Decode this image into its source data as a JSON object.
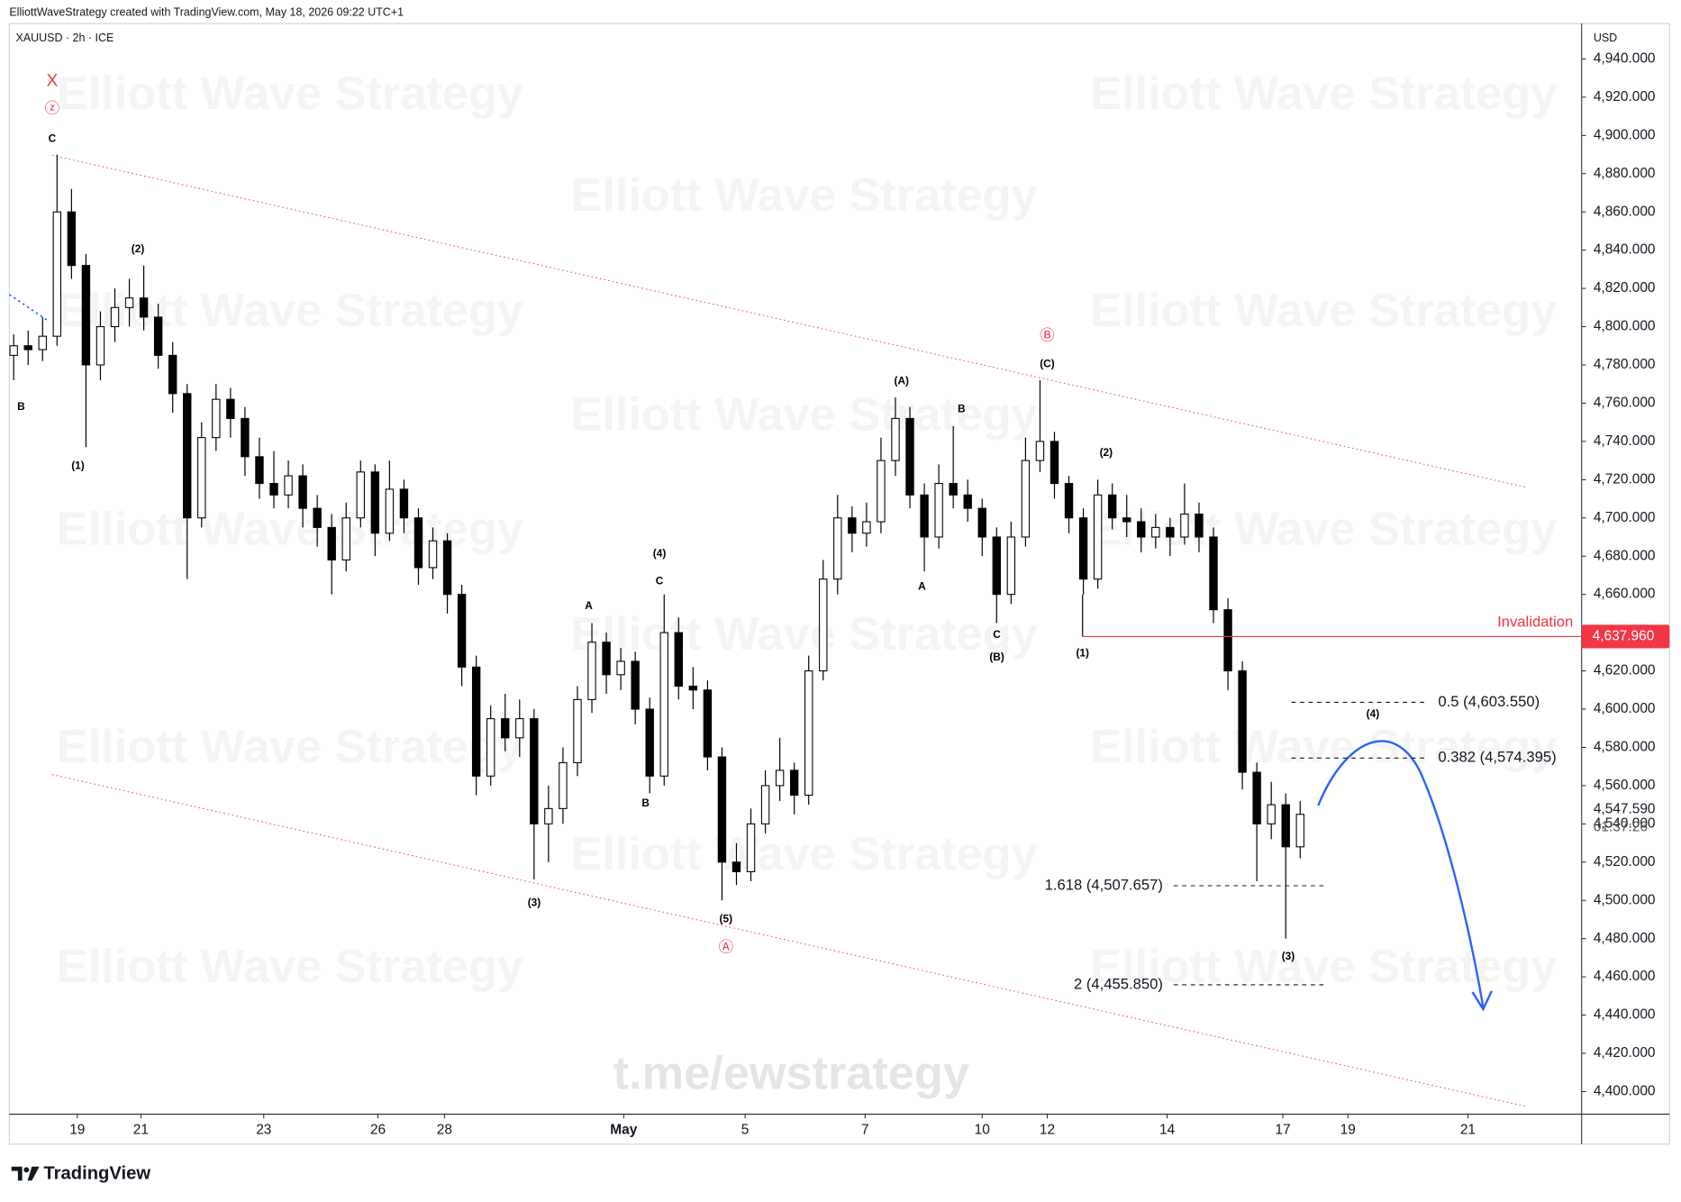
{
  "header": {
    "credit": "ElliottWaveStrategy created with TradingView.com, May 18, 2026 09:22 UTC+1",
    "symbol": "XAUUSD · 2h · ICE",
    "currency": "USD",
    "watermark": "Elliott Wave Strategy",
    "channel": "t.me/ewstrategy",
    "brand": "TradingView"
  },
  "chart_data": {
    "type": "candlestick",
    "candles": [
      [
        4785,
        4796,
        4772,
        4790
      ],
      [
        4790,
        4798,
        4780,
        4788
      ],
      [
        4788,
        4805,
        4782,
        4795
      ],
      [
        4795,
        4890,
        4790,
        4860
      ],
      [
        4860,
        4872,
        4825,
        4832
      ],
      [
        4832,
        4838,
        4737,
        4780
      ],
      [
        4780,
        4808,
        4772,
        4800
      ],
      [
        4800,
        4820,
        4792,
        4810
      ],
      [
        4810,
        4825,
        4800,
        4815
      ],
      [
        4815,
        4832,
        4798,
        4805
      ],
      [
        4805,
        4812,
        4778,
        4785
      ],
      [
        4785,
        4792,
        4755,
        4765
      ],
      [
        4765,
        4770,
        4668,
        4700
      ],
      [
        4700,
        4750,
        4695,
        4742
      ],
      [
        4742,
        4770,
        4735,
        4762
      ],
      [
        4762,
        4768,
        4742,
        4752
      ],
      [
        4752,
        4758,
        4722,
        4732
      ],
      [
        4732,
        4742,
        4710,
        4718
      ],
      [
        4718,
        4735,
        4705,
        4712
      ],
      [
        4712,
        4730,
        4705,
        4722
      ],
      [
        4722,
        4728,
        4695,
        4705
      ],
      [
        4705,
        4712,
        4685,
        4695
      ],
      [
        4695,
        4702,
        4660,
        4678
      ],
      [
        4678,
        4708,
        4672,
        4700
      ],
      [
        4700,
        4730,
        4695,
        4724
      ],
      [
        4724,
        4728,
        4680,
        4692
      ],
      [
        4692,
        4730,
        4688,
        4715
      ],
      [
        4715,
        4720,
        4692,
        4700
      ],
      [
        4700,
        4705,
        4665,
        4674
      ],
      [
        4674,
        4695,
        4668,
        4688
      ],
      [
        4688,
        4692,
        4650,
        4660
      ],
      [
        4660,
        4665,
        4612,
        4622
      ],
      [
        4622,
        4628,
        4555,
        4565
      ],
      [
        4565,
        4602,
        4560,
        4595
      ],
      [
        4595,
        4608,
        4578,
        4585
      ],
      [
        4585,
        4605,
        4575,
        4595
      ],
      [
        4595,
        4600,
        4511,
        4540
      ],
      [
        4540,
        4560,
        4520,
        4548
      ],
      [
        4548,
        4580,
        4540,
        4572
      ],
      [
        4572,
        4612,
        4565,
        4605
      ],
      [
        4605,
        4645,
        4598,
        4635
      ],
      [
        4635,
        4640,
        4608,
        4618
      ],
      [
        4618,
        4632,
        4610,
        4625
      ],
      [
        4625,
        4630,
        4592,
        4600
      ],
      [
        4600,
        4606,
        4556,
        4565
      ],
      [
        4565,
        4660,
        4560,
        4640
      ],
      [
        4640,
        4648,
        4605,
        4612
      ],
      [
        4612,
        4622,
        4600,
        4610
      ],
      [
        4610,
        4615,
        4568,
        4575
      ],
      [
        4575,
        4580,
        4500,
        4520
      ],
      [
        4520,
        4530,
        4508,
        4515
      ],
      [
        4515,
        4548,
        4510,
        4540
      ],
      [
        4540,
        4568,
        4535,
        4560
      ],
      [
        4560,
        4585,
        4552,
        4568
      ],
      [
        4568,
        4572,
        4545,
        4555
      ],
      [
        4555,
        4628,
        4550,
        4620
      ],
      [
        4620,
        4678,
        4615,
        4668
      ],
      [
        4668,
        4712,
        4660,
        4700
      ],
      [
        4700,
        4706,
        4682,
        4692
      ],
      [
        4692,
        4708,
        4685,
        4698
      ],
      [
        4698,
        4742,
        4692,
        4730
      ],
      [
        4730,
        4763,
        4722,
        4752
      ],
      [
        4752,
        4758,
        4705,
        4712
      ],
      [
        4712,
        4718,
        4672,
        4690
      ],
      [
        4690,
        4728,
        4684,
        4718
      ],
      [
        4718,
        4748,
        4705,
        4712
      ],
      [
        4712,
        4720,
        4698,
        4705
      ],
      [
        4705,
        4710,
        4680,
        4690
      ],
      [
        4690,
        4695,
        4645,
        4660
      ],
      [
        4660,
        4698,
        4655,
        4690
      ],
      [
        4690,
        4742,
        4685,
        4730
      ],
      [
        4730,
        4772,
        4724,
        4740
      ],
      [
        4740,
        4745,
        4710,
        4718
      ],
      [
        4718,
        4722,
        4692,
        4700
      ],
      [
        4700,
        4705,
        4660,
        4668
      ],
      [
        4668,
        4720,
        4663,
        4712
      ],
      [
        4712,
        4718,
        4694,
        4700
      ],
      [
        4700,
        4712,
        4690,
        4698
      ],
      [
        4698,
        4705,
        4682,
        4690
      ],
      [
        4690,
        4702,
        4684,
        4695
      ],
      [
        4695,
        4700,
        4680,
        4690
      ],
      [
        4690,
        4718,
        4686,
        4702
      ],
      [
        4702,
        4708,
        4682,
        4690
      ],
      [
        4690,
        4695,
        4645,
        4652
      ],
      [
        4652,
        4658,
        4610,
        4620
      ],
      [
        4620,
        4625,
        4558,
        4567
      ],
      [
        4567,
        4572,
        4510,
        4540
      ],
      [
        4540,
        4562,
        4532,
        4550
      ],
      [
        4550,
        4556,
        4480,
        4528
      ],
      [
        4528,
        4552,
        4522,
        4545
      ]
    ],
    "up_color": "#ffffff",
    "down_color": "#000000",
    "xlim": [
      -0.3,
      108.4
    ],
    "xticks": [
      {
        "value": 4.4,
        "label": "19"
      },
      {
        "value": 8.8,
        "label": "21"
      },
      {
        "value": 17.3,
        "label": "23"
      },
      {
        "value": 25.2,
        "label": "26"
      },
      {
        "value": 29.8,
        "label": "28"
      },
      {
        "value": 42.2,
        "label": "May"
      },
      {
        "value": 50.6,
        "label": "5"
      },
      {
        "value": 58.9,
        "label": "7"
      },
      {
        "value": 67,
        "label": "10"
      },
      {
        "value": 71.5,
        "label": "12"
      },
      {
        "value": 79.8,
        "label": "14"
      },
      {
        "value": 87.8,
        "label": "17"
      },
      {
        "value": 92.3,
        "label": "19"
      },
      {
        "value": 100.6,
        "label": "21"
      }
    ],
    "ylim": [
      4388.2,
      4958.5
    ],
    "yticks": [
      {
        "value": 4400,
        "label": "4,400.000"
      },
      {
        "value": 4420,
        "label": "4,420.000"
      },
      {
        "value": 4440,
        "label": "4,440.000"
      },
      {
        "value": 4460,
        "label": "4,460.000"
      },
      {
        "value": 4480,
        "label": "4,480.000"
      },
      {
        "value": 4500,
        "label": "4,500.000"
      },
      {
        "value": 4520,
        "label": "4,520.000"
      },
      {
        "value": 4540,
        "label": "4,540.000"
      },
      {
        "value": 4560,
        "label": "4,560.000"
      },
      {
        "value": 4580,
        "label": "4,580.000"
      },
      {
        "value": 4600,
        "label": "4,600.000"
      },
      {
        "value": 4620,
        "label": "4,620.000"
      },
      {
        "value": 4640,
        "label": "4,640.000"
      },
      {
        "value": 4660,
        "label": "4,660.000"
      },
      {
        "value": 4680,
        "label": "4,680.000"
      },
      {
        "value": 4700,
        "label": "4,700.000"
      },
      {
        "value": 4720,
        "label": "4,720.000"
      },
      {
        "value": 4740,
        "label": "4,740.000"
      },
      {
        "value": 4760,
        "label": "4,760.000"
      },
      {
        "value": 4780,
        "label": "4,780.000"
      },
      {
        "value": 4800,
        "label": "4,800.000"
      },
      {
        "value": 4820,
        "label": "4,820.000"
      },
      {
        "value": 4840,
        "label": "4,840.000"
      },
      {
        "value": 4860,
        "label": "4,860.000"
      },
      {
        "value": 4880,
        "label": "4,880.000"
      },
      {
        "value": 4900,
        "label": "4,900.000"
      },
      {
        "value": 4920,
        "label": "4,920.000"
      },
      {
        "value": 4940,
        "label": "4,940.000"
      }
    ],
    "grid": false,
    "last_price": {
      "value": 4547.59,
      "label": "4,547.590"
    },
    "countdown": "01:37:26",
    "invalidation": {
      "text": "Invalidation",
      "value": 4637.96,
      "label": "4,637.960",
      "color": "#f23645"
    },
    "fib_levels": [
      {
        "value": 4603.55,
        "label": "0.5 (4,603.550)"
      },
      {
        "value": 4574.395,
        "label": "0.382 (4,574.395)"
      },
      {
        "value": 4507.657,
        "label": "1.618 (4,507.657)"
      },
      {
        "value": 4455.85,
        "label": "2 (4,455.850)"
      }
    ],
    "wave_labels": [
      {
        "text": "X",
        "color": "#f23645"
      },
      {
        "text": "ⓩ",
        "color": "#f23645"
      },
      {
        "text": "C",
        "color": "#000000"
      },
      {
        "text": "B",
        "color": "#000000"
      },
      {
        "text": "(1)",
        "color": "#000000"
      },
      {
        "text": "(2)",
        "color": "#000000"
      },
      {
        "text": "(3)",
        "color": "#000000"
      },
      {
        "text": "A",
        "color": "#000000"
      },
      {
        "text": "B",
        "color": "#000000"
      },
      {
        "text": "C",
        "color": "#000000"
      },
      {
        "text": "(4)",
        "color": "#000000"
      },
      {
        "text": "(5)",
        "color": "#000000"
      },
      {
        "text": "Ⓐ",
        "color": "#f23645"
      },
      {
        "text": "(A)",
        "color": "#000000"
      },
      {
        "text": "A",
        "color": "#000000"
      },
      {
        "text": "B",
        "color": "#000000"
      },
      {
        "text": "C",
        "color": "#000000"
      },
      {
        "text": "(B)",
        "color": "#000000"
      },
      {
        "text": "Ⓑ",
        "color": "#f23645"
      },
      {
        "text": "(C)",
        "color": "#000000"
      },
      {
        "text": "(1)",
        "color": "#000000"
      },
      {
        "text": "(2)",
        "color": "#000000"
      },
      {
        "text": "(3)",
        "color": "#000000"
      },
      {
        "text": "(4)",
        "color": "#000000"
      }
    ]
  }
}
